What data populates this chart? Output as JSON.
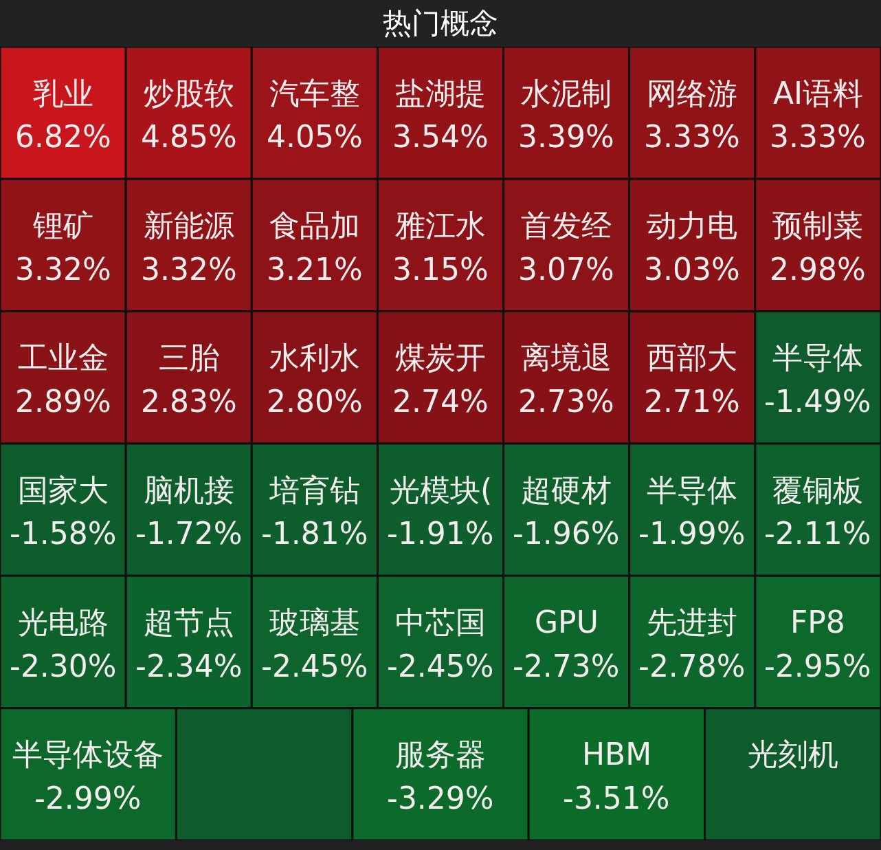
{
  "chart_data": {
    "type": "other",
    "title": "热门概念",
    "categories": [
      "乳业",
      "炒股软",
      "汽车整",
      "盐湖提",
      "水泥制",
      "网络游",
      "AI语料",
      "锂矿",
      "新能源",
      "食品加",
      "雅江水",
      "首发经",
      "动力电",
      "预制菜",
      "工业金",
      "三胎",
      "水利水",
      "煤炭开",
      "离境退",
      "西部大",
      "半导体",
      "国家大",
      "脑机接",
      "培育钻",
      "光模块(",
      "超硬材",
      "半导体",
      "覆铜板",
      "光电路",
      "超节点",
      "玻璃基",
      "中芯国",
      "GPU",
      "先进封",
      "FP8",
      "半导体设备",
      null,
      "服务器",
      "HBM",
      "光刻机"
    ],
    "values": [
      6.82,
      4.85,
      4.05,
      3.54,
      3.39,
      3.33,
      3.33,
      3.32,
      3.32,
      3.21,
      3.15,
      3.07,
      3.03,
      2.98,
      2.89,
      2.83,
      2.8,
      2.74,
      2.73,
      2.71,
      -1.49,
      -1.58,
      -1.72,
      -1.81,
      -1.91,
      -1.96,
      -1.99,
      -2.11,
      -2.3,
      -2.34,
      -2.45,
      -2.45,
      -2.73,
      -2.78,
      -2.95,
      -2.99,
      null,
      -3.29,
      -3.51,
      null
    ],
    "value_labels": [
      "6.82%",
      "4.85%",
      "4.05%",
      "3.54%",
      "3.39%",
      "3.33%",
      "3.33%",
      "3.32%",
      "3.32%",
      "3.21%",
      "3.15%",
      "3.07%",
      "3.03%",
      "2.98%",
      "2.89%",
      "2.83%",
      "2.80%",
      "2.74%",
      "2.73%",
      "2.71%",
      "-1.49%",
      "-1.58%",
      "-1.72%",
      "-1.81%",
      "-1.91%",
      "-1.96%",
      "-1.99%",
      "-2.11%",
      "-2.30%",
      "-2.34%",
      "-2.45%",
      "-2.45%",
      "-2.73%",
      "-2.78%",
      "-2.95%",
      "-2.99%",
      null,
      "-3.29%",
      "-3.51%",
      null
    ]
  }
}
